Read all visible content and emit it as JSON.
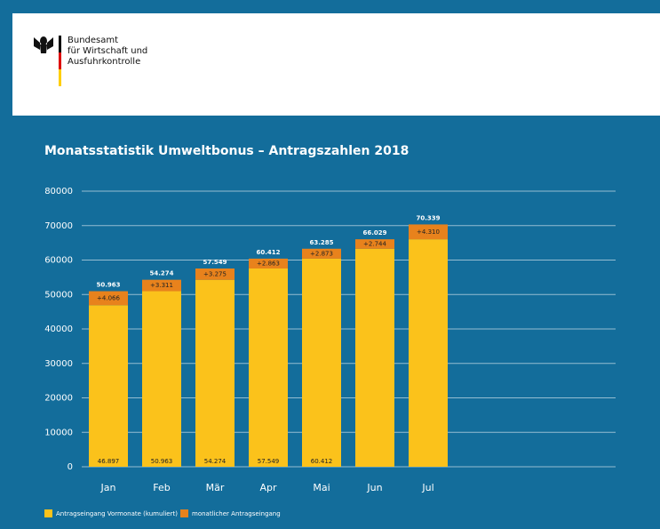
{
  "header": {
    "lines": [
      "Bundesamt",
      "für Wirtschaft und",
      "Ausfuhrkontrolle"
    ]
  },
  "chart_data": {
    "type": "stacked_bar",
    "title": "Monatsstatistik Umweltbonus – Antragszahlen 2018",
    "categories": [
      "Jan",
      "Feb",
      "Mär",
      "Apr",
      "Mai",
      "Jun",
      "Jul"
    ],
    "series": [
      {
        "name": "Antragseingang Vormonate (kumuliert)",
        "color": "#fbc21b",
        "values": [
          46897,
          50963,
          54274,
          57549,
          60412,
          63285,
          66029
        ],
        "value_labels": [
          "46.897",
          "50.963",
          "54.274",
          "57.549",
          "60.412",
          null,
          null
        ]
      },
      {
        "name": "monatlicher Antragseingang",
        "color": "#e8821c",
        "values": [
          4066,
          3311,
          3275,
          2863,
          2873,
          2744,
          4310
        ],
        "value_labels": [
          "+4.066",
          "+3.311",
          "+3.275",
          "+2.863",
          "+2.873",
          "+2.744",
          "+4.310"
        ]
      }
    ],
    "totals": {
      "values": [
        50963,
        54274,
        57549,
        60412,
        63285,
        66029,
        70339
      ],
      "value_labels": [
        "50.963",
        "54.274",
        "57.549",
        "60.412",
        "63.285",
        "66.029",
        "70.339"
      ]
    },
    "ylim": [
      0,
      80000
    ],
    "yticks": [
      0,
      10000,
      20000,
      30000,
      40000,
      50000,
      60000,
      70000,
      80000
    ],
    "grid": true
  }
}
